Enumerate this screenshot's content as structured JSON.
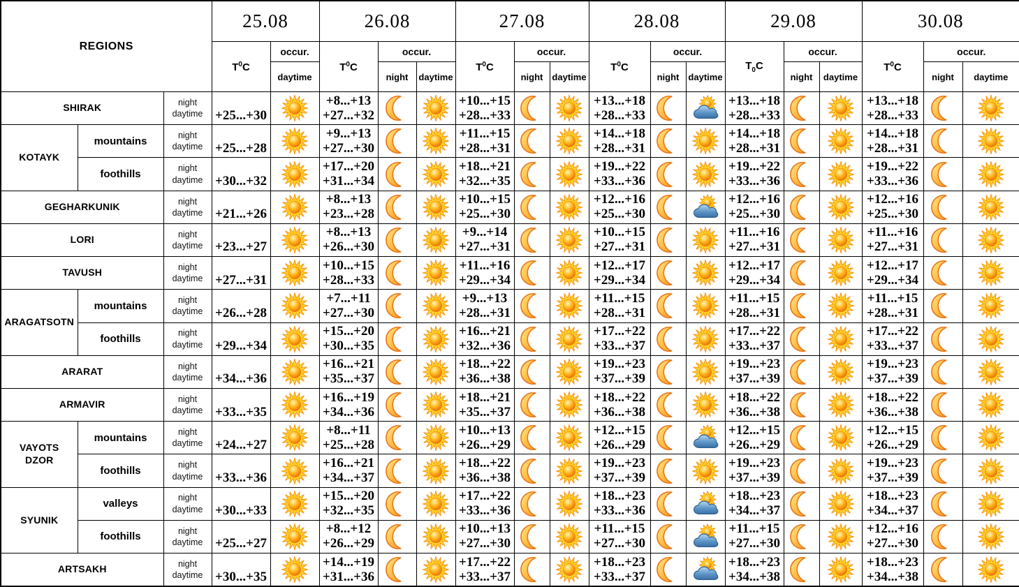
{
  "table": {
    "regions_header": "REGIONS",
    "occur_label": "occur.",
    "night_label": "night",
    "daytime_label": "daytime",
    "temp_unit": {
      "pre": "T",
      "zero": "0",
      "post": "C"
    },
    "dates": [
      {
        "label": "25.08",
        "has_night": false,
        "t_zero": "sup"
      },
      {
        "label": "26.08",
        "has_night": true,
        "t_zero": "sup"
      },
      {
        "label": "27.08",
        "has_night": true,
        "t_zero": "sup"
      },
      {
        "label": "28.08",
        "has_night": true,
        "t_zero": "sup"
      },
      {
        "label": "29.08",
        "has_night": true,
        "t_zero": "sub"
      },
      {
        "label": "30.08",
        "has_night": true,
        "t_zero": "sup"
      }
    ],
    "rows": [
      {
        "region": "SHIRAK",
        "region_rowspan": 1,
        "sub": null,
        "forecast": [
          {
            "day": "+25...+30",
            "day_icon": "sun"
          },
          {
            "night": "+8...+13",
            "day": "+27...+32",
            "night_icon": "moon",
            "day_icon": "sun"
          },
          {
            "night": "+10...+15",
            "day": "+28...+33",
            "night_icon": "moon",
            "day_icon": "sun"
          },
          {
            "night": "+13...+18",
            "day": "+28...+33",
            "night_icon": "moon",
            "day_icon": "sun_cloud"
          },
          {
            "night": "+13...+18",
            "day": "+28...+33",
            "night_icon": "moon",
            "day_icon": "sun"
          },
          {
            "night": "+13...+18",
            "day": "+28...+33",
            "night_icon": "moon",
            "day_icon": "sun"
          }
        ]
      },
      {
        "region": "KOTAYK",
        "region_rowspan": 2,
        "sub": "mountains",
        "forecast": [
          {
            "day": "+25...+28",
            "day_icon": "sun"
          },
          {
            "night": "+9...+13",
            "day": "+27...+30",
            "night_icon": "moon",
            "day_icon": "sun"
          },
          {
            "night": "+11...+15",
            "day": "+28...+31",
            "night_icon": "moon",
            "day_icon": "sun"
          },
          {
            "night": "+14...+18",
            "day": "+28...+31",
            "night_icon": "moon",
            "day_icon": "sun"
          },
          {
            "night": "+14...+18",
            "day": "+28...+31",
            "night_icon": "moon",
            "day_icon": "sun"
          },
          {
            "night": "+14...+18",
            "day": "+28...+31",
            "night_icon": "moon",
            "day_icon": "sun"
          }
        ]
      },
      {
        "region": null,
        "region_rowspan": 1,
        "sub": "foothills",
        "forecast": [
          {
            "day": "+30...+32",
            "day_icon": "sun"
          },
          {
            "night": "+17...+20",
            "day": "+31...+34",
            "night_icon": "moon",
            "day_icon": "sun"
          },
          {
            "night": "+18...+21",
            "day": "+32...+35",
            "night_icon": "moon",
            "day_icon": "sun"
          },
          {
            "night": "+19...+22",
            "day": "+33...+36",
            "night_icon": "moon",
            "day_icon": "sun"
          },
          {
            "night": "+19...+22",
            "day": "+33...+36",
            "night_icon": "moon",
            "day_icon": "sun"
          },
          {
            "night": "+19...+22",
            "day": "+33...+36",
            "night_icon": "moon",
            "day_icon": "sun"
          }
        ]
      },
      {
        "region": "GEGHARKUNIK",
        "region_rowspan": 1,
        "sub": null,
        "forecast": [
          {
            "day": "+21...+26",
            "day_icon": "sun"
          },
          {
            "night": "+8...+13",
            "day": "+23...+28",
            "night_icon": "moon",
            "day_icon": "sun"
          },
          {
            "night": "+10...+15",
            "day": "+25...+30",
            "night_icon": "moon",
            "day_icon": "sun"
          },
          {
            "night": "+12...+16",
            "day": "+25...+30",
            "night_icon": "moon",
            "day_icon": "sun_cloud"
          },
          {
            "night": "+12...+16",
            "day": "+25...+30",
            "night_icon": "moon",
            "day_icon": "sun"
          },
          {
            "night": "+12...+16",
            "day": "+25...+30",
            "night_icon": "moon",
            "day_icon": "sun"
          }
        ]
      },
      {
        "region": "LORI",
        "region_rowspan": 1,
        "sub": null,
        "forecast": [
          {
            "day": "+23...+27",
            "day_icon": "sun"
          },
          {
            "night": "+8...+13",
            "day": "+26...+30",
            "night_icon": "moon",
            "day_icon": "sun"
          },
          {
            "night": "+9...+14",
            "day": "+27...+31",
            "night_icon": "moon",
            "day_icon": "sun"
          },
          {
            "night": "+10...+15",
            "day": "+27...+31",
            "night_icon": "moon",
            "day_icon": "sun"
          },
          {
            "night": "+11...+16",
            "day": "+27...+31",
            "night_icon": "moon",
            "day_icon": "sun"
          },
          {
            "night": "+11...+16",
            "day": "+27...+31",
            "night_icon": "moon",
            "day_icon": "sun"
          }
        ]
      },
      {
        "region": "TAVUSH",
        "region_rowspan": 1,
        "sub": null,
        "forecast": [
          {
            "day": "+27...+31",
            "day_icon": "sun"
          },
          {
            "night": "+10...+15",
            "day": "+28...+33",
            "night_icon": "moon",
            "day_icon": "sun"
          },
          {
            "night": "+11...+16",
            "day": "+29...+34",
            "night_icon": "moon",
            "day_icon": "sun"
          },
          {
            "night": "+12...+17",
            "day": "+29...+34",
            "night_icon": "moon",
            "day_icon": "sun"
          },
          {
            "night": "+12...+17",
            "day": "+29...+34",
            "night_icon": "moon",
            "day_icon": "sun"
          },
          {
            "night": "+12...+17",
            "day": "+29...+34",
            "night_icon": "moon",
            "day_icon": "sun"
          }
        ]
      },
      {
        "region": "ARAGATSOTN",
        "region_rowspan": 2,
        "sub": "mountains",
        "forecast": [
          {
            "day": "+26...+28",
            "day_icon": "sun"
          },
          {
            "night": "+7...+11",
            "day": "+27...+30",
            "night_icon": "moon",
            "day_icon": "sun"
          },
          {
            "night": "+9...+13",
            "day": "+28...+31",
            "night_icon": "moon",
            "day_icon": "sun"
          },
          {
            "night": "+11...+15",
            "day": "+28...+31",
            "night_icon": "moon",
            "day_icon": "sun"
          },
          {
            "night": "+11...+15",
            "day": "+28...+31",
            "night_icon": "moon",
            "day_icon": "sun"
          },
          {
            "night": "+11...+15",
            "day": "+28...+31",
            "night_icon": "moon",
            "day_icon": "sun"
          }
        ]
      },
      {
        "region": null,
        "region_rowspan": 1,
        "sub": "foothills",
        "forecast": [
          {
            "day": "+29...+34",
            "day_icon": "sun"
          },
          {
            "night": "+15...+20",
            "day": "+30...+35",
            "night_icon": "moon",
            "day_icon": "sun"
          },
          {
            "night": "+16...+21",
            "day": "+32...+36",
            "night_icon": "moon",
            "day_icon": "sun"
          },
          {
            "night": "+17...+22",
            "day": "+33...+37",
            "night_icon": "moon",
            "day_icon": "sun"
          },
          {
            "night": "+17...+22",
            "day": "+33...+37",
            "night_icon": "moon",
            "day_icon": "sun"
          },
          {
            "night": "+17...+22",
            "day": "+33...+37",
            "night_icon": "moon",
            "day_icon": "sun"
          }
        ]
      },
      {
        "region": "ARARAT",
        "region_rowspan": 1,
        "sub": null,
        "forecast": [
          {
            "day": "+34...+36",
            "day_icon": "sun"
          },
          {
            "night": "+16...+21",
            "day": "+35...+37",
            "night_icon": "moon",
            "day_icon": "sun"
          },
          {
            "night": "+18...+22",
            "day": "+36...+38",
            "night_icon": "moon",
            "day_icon": "sun"
          },
          {
            "night": "+19...+23",
            "day": "+37...+39",
            "night_icon": "moon",
            "day_icon": "sun"
          },
          {
            "night": "+19...+23",
            "day": "+37...+39",
            "night_icon": "moon",
            "day_icon": "sun"
          },
          {
            "night": "+19...+23",
            "day": "+37...+39",
            "night_icon": "moon",
            "day_icon": "sun"
          }
        ]
      },
      {
        "region": "ARMAVIR",
        "region_rowspan": 1,
        "sub": null,
        "forecast": [
          {
            "day": "+33...+35",
            "day_icon": "sun"
          },
          {
            "night": "+16...+19",
            "day": "+34...+36",
            "night_icon": "moon",
            "day_icon": "sun"
          },
          {
            "night": "+18...+21",
            "day": "+35...+37",
            "night_icon": "moon",
            "day_icon": "sun"
          },
          {
            "night": "+18...+22",
            "day": "+36...+38",
            "night_icon": "moon",
            "day_icon": "sun"
          },
          {
            "night": "+18...+22",
            "day": "+36...+38",
            "night_icon": "moon",
            "day_icon": "sun"
          },
          {
            "night": "+18...+22",
            "day": "+36...+38",
            "night_icon": "moon",
            "day_icon": "sun"
          }
        ]
      },
      {
        "region": "VAYOTS\nDZOR",
        "region_rowspan": 2,
        "sub": "mountains",
        "forecast": [
          {
            "day": "+24...+27",
            "day_icon": "sun"
          },
          {
            "night": "+8...+11",
            "day": "+25...+28",
            "night_icon": "moon",
            "day_icon": "sun"
          },
          {
            "night": "+10...+13",
            "day": "+26...+29",
            "night_icon": "moon",
            "day_icon": "sun"
          },
          {
            "night": "+12...+15",
            "day": "+26...+29",
            "night_icon": "moon",
            "day_icon": "sun_cloud"
          },
          {
            "night": "+12...+15",
            "day": "+26...+29",
            "night_icon": "moon",
            "day_icon": "sun"
          },
          {
            "night": "+12...+15",
            "day": "+26...+29",
            "night_icon": "moon",
            "day_icon": "sun"
          }
        ]
      },
      {
        "region": null,
        "region_rowspan": 1,
        "sub": "foothills",
        "forecast": [
          {
            "day": "+33...+36",
            "day_icon": "sun"
          },
          {
            "night": "+16...+21",
            "day": "+34...+37",
            "night_icon": "moon",
            "day_icon": "sun"
          },
          {
            "night": "+18...+22",
            "day": "+36...+38",
            "night_icon": "moon",
            "day_icon": "sun"
          },
          {
            "night": "+19...+23",
            "day": "+37...+39",
            "night_icon": "moon",
            "day_icon": "sun"
          },
          {
            "night": "+19...+23",
            "day": "+37...+39",
            "night_icon": "moon",
            "day_icon": "sun"
          },
          {
            "night": "+19...+23",
            "day": "+37...+39",
            "night_icon": "moon",
            "day_icon": "sun"
          }
        ]
      },
      {
        "region": "SYUNIK",
        "region_rowspan": 2,
        "sub": "valleys",
        "forecast": [
          {
            "day": "+30...+33",
            "day_icon": "sun"
          },
          {
            "night": "+15...+20",
            "day": "+32...+35",
            "night_icon": "moon",
            "day_icon": "sun"
          },
          {
            "night": "+17...+22",
            "day": "+33...+36",
            "night_icon": "moon",
            "day_icon": "sun"
          },
          {
            "night": "+18...+23",
            "day": "+33...+36",
            "night_icon": "moon",
            "day_icon": "sun_cloud"
          },
          {
            "night": "+18...+23",
            "day": "+34...+37",
            "night_icon": "moon",
            "day_icon": "sun"
          },
          {
            "night": "+18...+23",
            "day": "+34...+37",
            "night_icon": "moon",
            "day_icon": "sun"
          }
        ]
      },
      {
        "region": null,
        "region_rowspan": 1,
        "sub": "foothills",
        "forecast": [
          {
            "day": "+25...+27",
            "day_icon": "sun"
          },
          {
            "night": "+8...+12",
            "day": "+26...+29",
            "night_icon": "moon",
            "day_icon": "sun"
          },
          {
            "night": "+10...+13",
            "day": "+27...+30",
            "night_icon": "moon",
            "day_icon": "sun"
          },
          {
            "night": "+11...+15",
            "day": "+27...+30",
            "night_icon": "moon",
            "day_icon": "sun_cloud"
          },
          {
            "night": "+11...+15",
            "day": "+27...+30",
            "night_icon": "moon",
            "day_icon": "sun"
          },
          {
            "night": "+12...+16",
            "day": "+27...+30",
            "night_icon": "moon",
            "day_icon": "sun"
          }
        ]
      },
      {
        "region": "ARTSAKH",
        "region_rowspan": 1,
        "sub": null,
        "forecast": [
          {
            "day": "+30...+35",
            "day_icon": "sun"
          },
          {
            "night": "+14...+19",
            "day": "+31...+36",
            "night_icon": "moon",
            "day_icon": "sun"
          },
          {
            "night": "+17...+22",
            "day": "+33...+37",
            "night_icon": "moon",
            "day_icon": "sun"
          },
          {
            "night": "+18...+23",
            "day": "+33...+37",
            "night_icon": "moon",
            "day_icon": "sun_cloud"
          },
          {
            "night": "+18...+23",
            "day": "+34...+38",
            "night_icon": "moon",
            "day_icon": "sun"
          },
          {
            "night": "+18...+23",
            "day": "+34...+38",
            "night_icon": "moon",
            "day_icon": "sun"
          }
        ]
      }
    ]
  },
  "icons": {
    "sun": "sun-icon",
    "moon": "crescent-moon-icon",
    "sun_cloud": "sun-behind-cloud-icon"
  },
  "colors": {
    "border": "#000000",
    "background": "#ffffff",
    "sun_ray": "#ffd029",
    "sun_edge": "#f28705",
    "sun_core_deep": "#e85f00",
    "moon_fill": "#ffbe45",
    "moon_edge": "#e8761e",
    "cloud_fill": "#5f97c9",
    "cloud_edge": "#2d6090"
  }
}
